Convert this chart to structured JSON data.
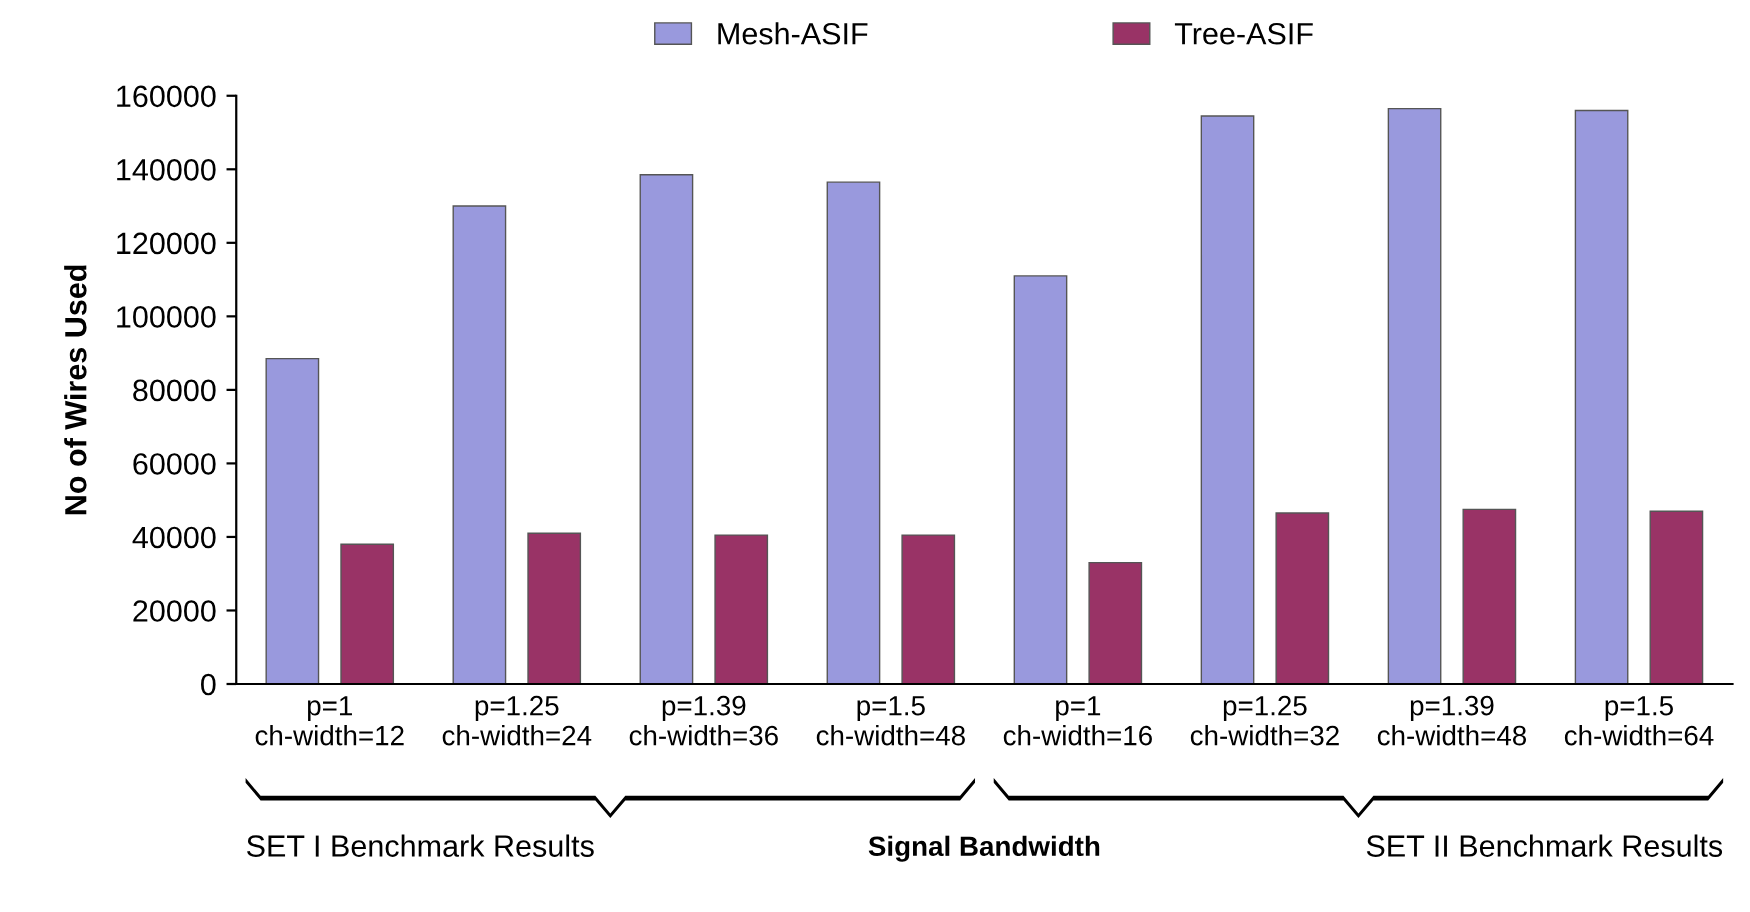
{
  "chart_data": {
    "type": "bar",
    "categories": [
      "p=1\nch-width=12",
      "p=1.25\nch-width=24",
      "p=1.39\nch-width=36",
      "p=1.5\nch-width=48",
      "p=1\nch-width=16",
      "p=1.25\nch-width=32",
      "p=1.39\nch-width=48",
      "p=1.5\nch-width=64"
    ],
    "series": [
      {
        "name": "Mesh-ASIF",
        "color": "#9999dd",
        "values": [
          88500,
          130000,
          138500,
          136500,
          111000,
          154500,
          156500,
          156000
        ]
      },
      {
        "name": "Tree-ASIF",
        "color": "#993366",
        "values": [
          38000,
          41000,
          40500,
          40500,
          33000,
          46500,
          47500,
          47000
        ]
      }
    ],
    "ylabel": "No of Wires Used",
    "xlabel": "Signal Bandwidth",
    "annotations": [
      "SET I Benchmark Results",
      "SET II Benchmark Results"
    ],
    "ylim": [
      0,
      160000
    ],
    "yticks": [
      0,
      20000,
      40000,
      60000,
      80000,
      100000,
      120000,
      140000,
      160000
    ],
    "grid": false,
    "legend": "top"
  }
}
